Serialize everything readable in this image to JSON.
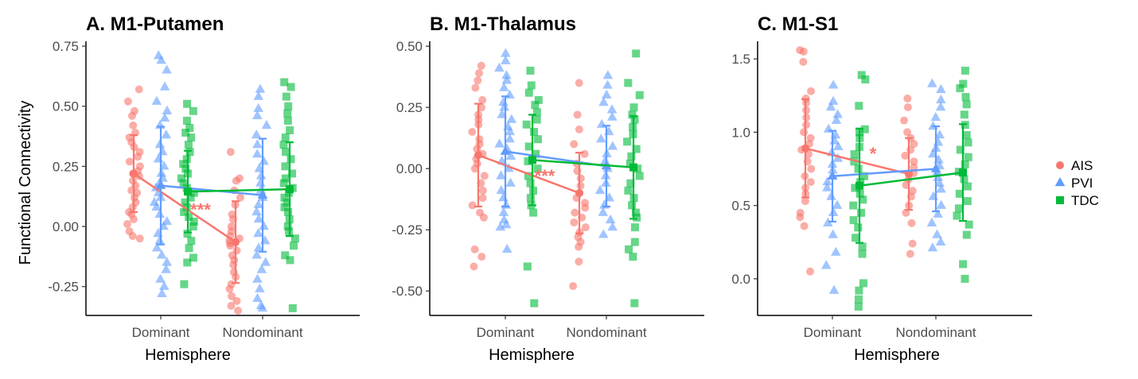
{
  "legend": {
    "entries": [
      {
        "name": "AIS",
        "color": "#F8766D",
        "shape": "circle"
      },
      {
        "name": "PVI",
        "color": "#619CFF",
        "shape": "triangle"
      },
      {
        "name": "TDC",
        "color": "#00BA38",
        "shape": "square"
      }
    ]
  },
  "chart_data": [
    {
      "type": "scatter",
      "title": "A. M1-Putamen",
      "xlabel": "Hemisphere",
      "ylabel": "Functional Connectivity",
      "categories": [
        "Dominant",
        "Nondominant"
      ],
      "ylim": [
        -0.37,
        0.77
      ],
      "yticks": [
        0.75,
        0.5,
        0.25,
        0.0,
        -0.25
      ],
      "ytick_labels": [
        "0.75",
        "0.50",
        "0.25",
        "0.00",
        "-0.25"
      ],
      "significance": {
        "label": "***",
        "series": "AIS"
      },
      "series": [
        {
          "name": "AIS",
          "mean": [
            0.22,
            -0.065
          ],
          "sd": [
            0.16,
            0.17
          ],
          "points": [
            [
              0.57,
              0.52,
              0.48,
              0.46,
              0.42,
              0.39,
              0.37,
              0.35,
              0.33,
              0.31,
              0.29,
              0.27,
              0.25,
              0.23,
              0.22,
              0.21,
              0.19,
              0.17,
              0.15,
              0.14,
              0.12,
              0.1,
              0.08,
              0.06,
              0.05,
              0.03,
              0.01,
              -0.02,
              -0.04,
              -0.05
            ],
            [
              0.31,
              0.2,
              0.19,
              0.15,
              0.12,
              0.09,
              0.05,
              0.03,
              0.0,
              -0.02,
              -0.04,
              -0.05,
              -0.06,
              -0.07,
              -0.08,
              -0.1,
              -0.12,
              -0.14,
              -0.16,
              -0.19,
              -0.21,
              -0.24,
              -0.26,
              -0.29,
              -0.31,
              -0.33,
              -0.35
            ]
          ]
        },
        {
          "name": "PVI",
          "mean": [
            0.17,
            0.13
          ],
          "sd": [
            0.245,
            0.235
          ],
          "points": [
            [
              0.71,
              0.69,
              0.65,
              0.58,
              0.52,
              0.48,
              0.45,
              0.42,
              0.38,
              0.34,
              0.31,
              0.28,
              0.25,
              0.22,
              0.2,
              0.18,
              0.16,
              0.14,
              0.12,
              0.1,
              0.08,
              0.05,
              0.02,
              0.0,
              -0.03,
              -0.06,
              -0.09,
              -0.12,
              -0.15,
              -0.18,
              -0.22,
              -0.25,
              -0.28
            ],
            [
              0.57,
              0.54,
              0.49,
              0.46,
              0.42,
              0.38,
              0.34,
              0.3,
              0.27,
              0.24,
              0.21,
              0.18,
              0.15,
              0.12,
              0.09,
              0.06,
              0.03,
              0.0,
              -0.03,
              -0.06,
              -0.09,
              -0.12,
              -0.15,
              -0.18,
              -0.22,
              -0.26,
              -0.3,
              -0.33,
              -0.34
            ]
          ]
        },
        {
          "name": "TDC",
          "mean": [
            0.145,
            0.155
          ],
          "sd": [
            0.17,
            0.195
          ],
          "points": [
            [
              0.51,
              0.48,
              0.44,
              0.41,
              0.39,
              0.37,
              0.34,
              0.31,
              0.28,
              0.26,
              0.24,
              0.22,
              0.2,
              0.18,
              0.16,
              0.14,
              0.12,
              0.1,
              0.08,
              0.06,
              0.04,
              0.02,
              0.0,
              -0.03,
              -0.06,
              -0.09,
              -0.13,
              -0.15,
              -0.24
            ],
            [
              0.6,
              0.58,
              0.54,
              0.5,
              0.47,
              0.44,
              0.4,
              0.37,
              0.34,
              0.31,
              0.28,
              0.25,
              0.22,
              0.2,
              0.18,
              0.16,
              0.14,
              0.12,
              0.1,
              0.08,
              0.06,
              0.03,
              0.0,
              -0.02,
              -0.05,
              -0.08,
              -0.12,
              -0.14,
              -0.34
            ]
          ]
        }
      ]
    },
    {
      "type": "scatter",
      "title": "B. M1-Thalamus",
      "xlabel": "Hemisphere",
      "ylabel": "",
      "categories": [
        "Dominant",
        "Nondominant"
      ],
      "ylim": [
        -0.6,
        0.52
      ],
      "yticks": [
        0.5,
        0.25,
        0.0,
        -0.25,
        -0.5
      ],
      "ytick_labels": [
        "0.50",
        "0.25",
        "0.00",
        "-0.25",
        "-0.50"
      ],
      "significance": {
        "label": "***",
        "series": "AIS"
      },
      "series": [
        {
          "name": "AIS",
          "mean": [
            0.055,
            -0.1
          ],
          "sd": [
            0.21,
            0.165
          ],
          "points": [
            [
              0.42,
              0.39,
              0.36,
              0.33,
              0.28,
              0.25,
              0.22,
              0.2,
              0.18,
              0.15,
              0.12,
              0.1,
              0.08,
              0.06,
              0.04,
              0.02,
              0.0,
              -0.03,
              -0.06,
              -0.09,
              -0.12,
              -0.15,
              -0.18,
              -0.2,
              -0.33,
              -0.36,
              -0.4
            ],
            [
              0.35,
              0.22,
              0.16,
              0.1,
              0.06,
              0.02,
              -0.01,
              -0.04,
              -0.07,
              -0.1,
              -0.12,
              -0.14,
              -0.16,
              -0.18,
              -0.2,
              -0.22,
              -0.24,
              -0.26,
              -0.28,
              -0.3,
              -0.32,
              -0.38,
              -0.48
            ]
          ]
        },
        {
          "name": "PVI",
          "mean": [
            0.07,
            0.01
          ],
          "sd": [
            0.225,
            0.165
          ],
          "points": [
            [
              0.47,
              0.44,
              0.41,
              0.38,
              0.36,
              0.33,
              0.3,
              0.27,
              0.25,
              0.22,
              0.2,
              0.17,
              0.15,
              0.12,
              0.1,
              0.08,
              0.05,
              0.03,
              0.0,
              -0.03,
              -0.06,
              -0.09,
              -0.12,
              -0.15,
              -0.18,
              -0.21,
              -0.23,
              -0.24,
              -0.33
            ],
            [
              0.38,
              0.34,
              0.3,
              0.27,
              0.24,
              0.21,
              0.18,
              0.15,
              0.12,
              0.09,
              0.06,
              0.03,
              0.0,
              -0.03,
              -0.06,
              -0.09,
              -0.12,
              -0.15,
              -0.18,
              -0.21,
              -0.24,
              -0.27
            ]
          ]
        },
        {
          "name": "TDC",
          "mean": [
            0.035,
            0.005
          ],
          "sd": [
            0.185,
            0.21
          ],
          "points": [
            [
              0.4,
              0.34,
              0.31,
              0.28,
              0.26,
              0.23,
              0.2,
              0.18,
              0.15,
              0.12,
              0.09,
              0.06,
              0.03,
              0.0,
              -0.03,
              -0.06,
              -0.09,
              -0.12,
              -0.15,
              -0.18,
              -0.4,
              -0.55
            ],
            [
              0.47,
              0.35,
              0.3,
              0.25,
              0.22,
              0.2,
              0.17,
              0.14,
              0.11,
              0.08,
              0.05,
              0.02,
              0.0,
              -0.03,
              -0.06,
              -0.09,
              -0.12,
              -0.15,
              -0.18,
              -0.2,
              -0.24,
              -0.3,
              -0.33,
              -0.36,
              -0.55
            ]
          ]
        }
      ]
    },
    {
      "type": "scatter",
      "title": "C. M1-S1",
      "xlabel": "Hemisphere",
      "ylabel": "",
      "categories": [
        "Dominant",
        "Nondominant"
      ],
      "ylim": [
        -0.25,
        1.62
      ],
      "yticks": [
        1.5,
        1.0,
        0.5,
        0.0
      ],
      "ytick_labels": [
        "1.5",
        "1.0",
        "0.5",
        "0.0"
      ],
      "significance": {
        "label": "*",
        "series": "AIS"
      },
      "series": [
        {
          "name": "AIS",
          "mean": [
            0.89,
            0.715
          ],
          "sd": [
            0.335,
            0.245
          ],
          "points": [
            [
              1.56,
              1.55,
              1.48,
              1.28,
              1.23,
              1.2,
              1.15,
              1.1,
              1.05,
              1.0,
              0.96,
              0.92,
              0.88,
              0.85,
              0.8,
              0.75,
              0.7,
              0.66,
              0.62,
              0.58,
              0.53,
              0.45,
              0.42,
              0.36,
              0.05
            ],
            [
              1.23,
              1.17,
              1.08,
              1.0,
              0.96,
              0.92,
              0.88,
              0.84,
              0.8,
              0.76,
              0.72,
              0.68,
              0.64,
              0.6,
              0.56,
              0.5,
              0.45,
              0.38,
              0.24,
              0.17
            ]
          ]
        },
        {
          "name": "PVI",
          "mean": [
            0.7,
            0.75
          ],
          "sd": [
            0.31,
            0.29
          ],
          "points": [
            [
              1.32,
              1.21,
              1.17,
              1.12,
              1.08,
              1.02,
              0.98,
              0.94,
              0.9,
              0.86,
              0.82,
              0.78,
              0.74,
              0.7,
              0.66,
              0.62,
              0.56,
              0.5,
              0.45,
              0.38,
              0.3,
              0.18,
              0.09,
              -0.08
            ],
            [
              1.33,
              1.29,
              1.22,
              1.17,
              1.1,
              1.04,
              0.98,
              0.93,
              0.89,
              0.85,
              0.81,
              0.77,
              0.73,
              0.69,
              0.65,
              0.61,
              0.56,
              0.5,
              0.44,
              0.38,
              0.3,
              0.25,
              0.21
            ]
          ]
        },
        {
          "name": "TDC",
          "mean": [
            0.635,
            0.725
          ],
          "sd": [
            0.39,
            0.33
          ],
          "points": [
            [
              1.39,
              1.36,
              1.18,
              1.02,
              1.0,
              0.96,
              0.9,
              0.85,
              0.8,
              0.75,
              0.7,
              0.66,
              0.62,
              0.58,
              0.54,
              0.5,
              0.45,
              0.4,
              0.35,
              0.28,
              0.22,
              0.17,
              -0.03,
              -0.08,
              -0.14,
              -0.19
            ],
            [
              1.42,
              1.33,
              1.3,
              1.24,
              1.19,
              1.12,
              1.05,
              0.98,
              0.93,
              0.88,
              0.83,
              0.78,
              0.73,
              0.68,
              0.63,
              0.58,
              0.53,
              0.48,
              0.43,
              0.37,
              0.3,
              0.1,
              0.0
            ]
          ]
        }
      ]
    }
  ]
}
